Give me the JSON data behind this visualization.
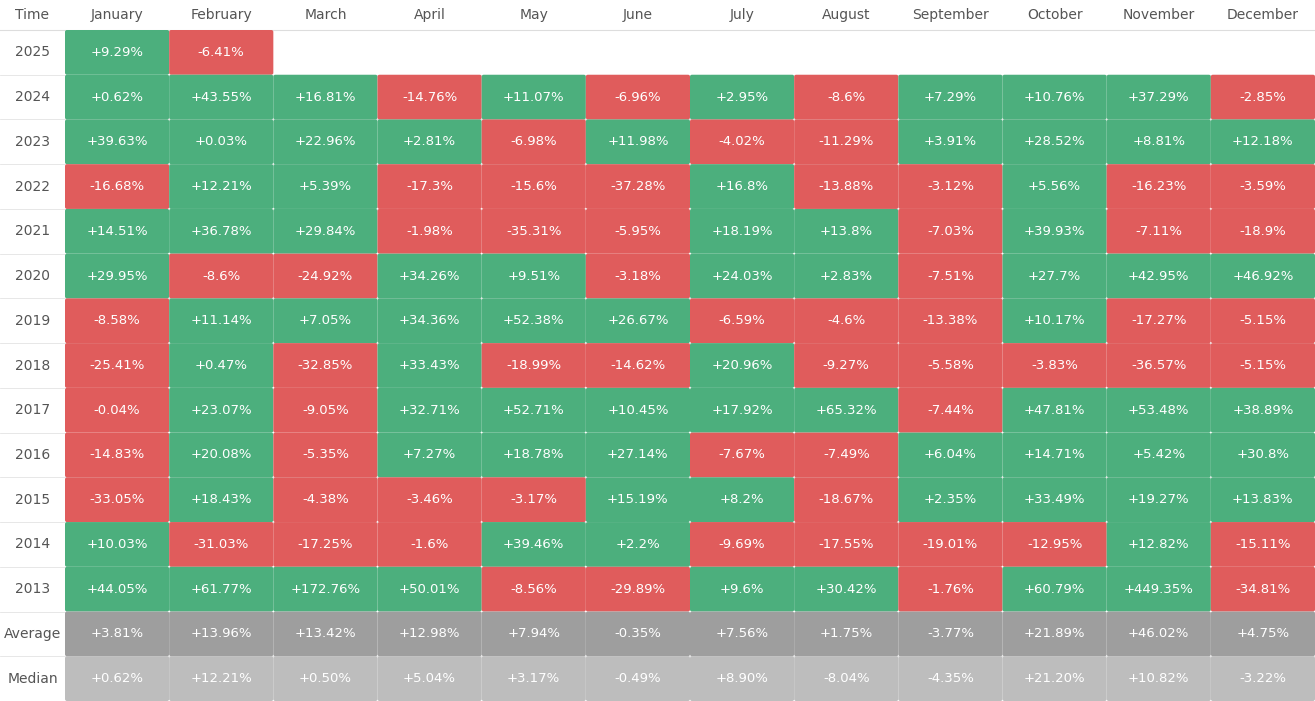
{
  "columns": [
    "January",
    "February",
    "March",
    "April",
    "May",
    "June",
    "July",
    "August",
    "September",
    "October",
    "November",
    "December"
  ],
  "rows": [
    {
      "year": "2025",
      "values": [
        "+9.29%",
        "-6.41%",
        null,
        null,
        null,
        null,
        null,
        null,
        null,
        null,
        null,
        null
      ]
    },
    {
      "year": "2024",
      "values": [
        "+0.62%",
        "+43.55%",
        "+16.81%",
        "-14.76%",
        "+11.07%",
        "-6.96%",
        "+2.95%",
        "-8.6%",
        "+7.29%",
        "+10.76%",
        "+37.29%",
        "-2.85%"
      ]
    },
    {
      "year": "2023",
      "values": [
        "+39.63%",
        "+0.03%",
        "+22.96%",
        "+2.81%",
        "-6.98%",
        "+11.98%",
        "-4.02%",
        "-11.29%",
        "+3.91%",
        "+28.52%",
        "+8.81%",
        "+12.18%"
      ]
    },
    {
      "year": "2022",
      "values": [
        "-16.68%",
        "+12.21%",
        "+5.39%",
        "-17.3%",
        "-15.6%",
        "-37.28%",
        "+16.8%",
        "-13.88%",
        "-3.12%",
        "+5.56%",
        "-16.23%",
        "-3.59%"
      ]
    },
    {
      "year": "2021",
      "values": [
        "+14.51%",
        "+36.78%",
        "+29.84%",
        "-1.98%",
        "-35.31%",
        "-5.95%",
        "+18.19%",
        "+13.8%",
        "-7.03%",
        "+39.93%",
        "-7.11%",
        "-18.9%"
      ]
    },
    {
      "year": "2020",
      "values": [
        "+29.95%",
        "-8.6%",
        "-24.92%",
        "+34.26%",
        "+9.51%",
        "-3.18%",
        "+24.03%",
        "+2.83%",
        "-7.51%",
        "+27.7%",
        "+42.95%",
        "+46.92%"
      ]
    },
    {
      "year": "2019",
      "values": [
        "-8.58%",
        "+11.14%",
        "+7.05%",
        "+34.36%",
        "+52.38%",
        "+26.67%",
        "-6.59%",
        "-4.6%",
        "-13.38%",
        "+10.17%",
        "-17.27%",
        "-5.15%"
      ]
    },
    {
      "year": "2018",
      "values": [
        "-25.41%",
        "+0.47%",
        "-32.85%",
        "+33.43%",
        "-18.99%",
        "-14.62%",
        "+20.96%",
        "-9.27%",
        "-5.58%",
        "-3.83%",
        "-36.57%",
        "-5.15%"
      ]
    },
    {
      "year": "2017",
      "values": [
        "-0.04%",
        "+23.07%",
        "-9.05%",
        "+32.71%",
        "+52.71%",
        "+10.45%",
        "+17.92%",
        "+65.32%",
        "-7.44%",
        "+47.81%",
        "+53.48%",
        "+38.89%"
      ]
    },
    {
      "year": "2016",
      "values": [
        "-14.83%",
        "+20.08%",
        "-5.35%",
        "+7.27%",
        "+18.78%",
        "+27.14%",
        "-7.67%",
        "-7.49%",
        "+6.04%",
        "+14.71%",
        "+5.42%",
        "+30.8%"
      ]
    },
    {
      "year": "2015",
      "values": [
        "-33.05%",
        "+18.43%",
        "-4.38%",
        "-3.46%",
        "-3.17%",
        "+15.19%",
        "+8.2%",
        "-18.67%",
        "+2.35%",
        "+33.49%",
        "+19.27%",
        "+13.83%"
      ]
    },
    {
      "year": "2014",
      "values": [
        "+10.03%",
        "-31.03%",
        "-17.25%",
        "-1.6%",
        "+39.46%",
        "+2.2%",
        "-9.69%",
        "-17.55%",
        "-19.01%",
        "-12.95%",
        "+12.82%",
        "-15.11%"
      ]
    },
    {
      "year": "2013",
      "values": [
        "+44.05%",
        "+61.77%",
        "+172.76%",
        "+50.01%",
        "-8.56%",
        "-29.89%",
        "+9.6%",
        "+30.42%",
        "-1.76%",
        "+60.79%",
        "+449.35%",
        "-34.81%"
      ]
    }
  ],
  "average": [
    "+3.81%",
    "+13.96%",
    "+13.42%",
    "+12.98%",
    "+7.94%",
    "-0.35%",
    "+7.56%",
    "+1.75%",
    "-3.77%",
    "+21.89%",
    "+46.02%",
    "+4.75%"
  ],
  "median": [
    "+0.62%",
    "+12.21%",
    "+0.50%",
    "+5.04%",
    "+3.17%",
    "-0.49%",
    "+8.90%",
    "-8.04%",
    "-4.35%",
    "+21.20%",
    "+10.82%",
    "-3.22%"
  ],
  "green_color": "#4caf7d",
  "red_color": "#e05c5c",
  "avg_color": "#9e9e9e",
  "median_color": "#bdbdbd",
  "header_text": "#555555",
  "row_label_text": "#555555",
  "cell_text_color": "#ffffff",
  "bg_color": "#ffffff"
}
